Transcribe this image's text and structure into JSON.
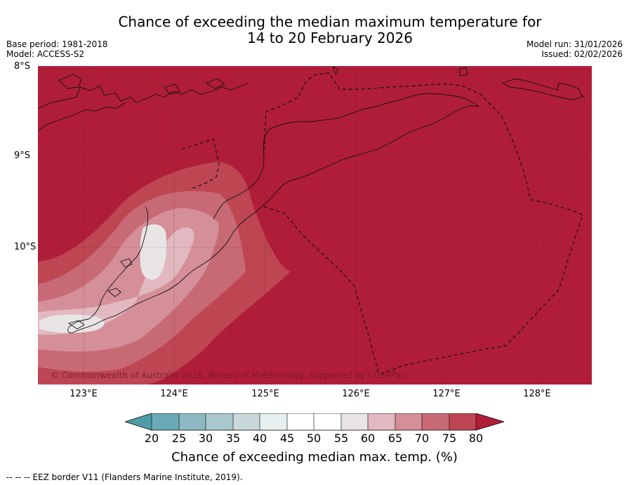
{
  "title": {
    "line1": "Chance of exceeding the median maximum temperature for",
    "line2": "14 to 20 February 2026"
  },
  "meta_left": {
    "base_period": "Base period: 1981-2018",
    "model": "Model: ACCESS-S2"
  },
  "meta_right": {
    "model_run": "Model run: 31/01/2026",
    "issued": "Issued: 02/02/2026"
  },
  "axes": {
    "lat_labels": [
      "8°S",
      "9°S",
      "10°S"
    ],
    "lon_labels": [
      "123°E",
      "124°E",
      "125°E",
      "126°E",
      "127°E",
      "128°E"
    ]
  },
  "copyright": "© Commonwealth of Australia 2026, Bureau of Meteorology, supported by COSPPac",
  "colorbar": {
    "ticks": [
      "20",
      "25",
      "30",
      "35",
      "40",
      "45",
      "50",
      "55",
      "60",
      "65",
      "70",
      "75",
      "80"
    ],
    "colors": {
      "below_20": "#4f9ba8",
      "b20_25": "#6aaab6",
      "b25_30": "#8db9c3",
      "b30_35": "#a9c8cd",
      "b35_40": "#c9d9db",
      "b40_45": "#e8eff1",
      "b45_50": "#ffffff",
      "b50_55": "#ffffff",
      "b55_60": "#e9e5e6",
      "b60_65": "#e2b9c0",
      "b65_70": "#d58f98",
      "b70_75": "#c86a75",
      "b75_80": "#be4653",
      "above_80": "#b01d39"
    },
    "label": "Chance of exceeding median max. temp. (%)"
  },
  "footnote": "--  --  -- EEZ border V11 (Flanders Marine Institute, 2019)."
}
